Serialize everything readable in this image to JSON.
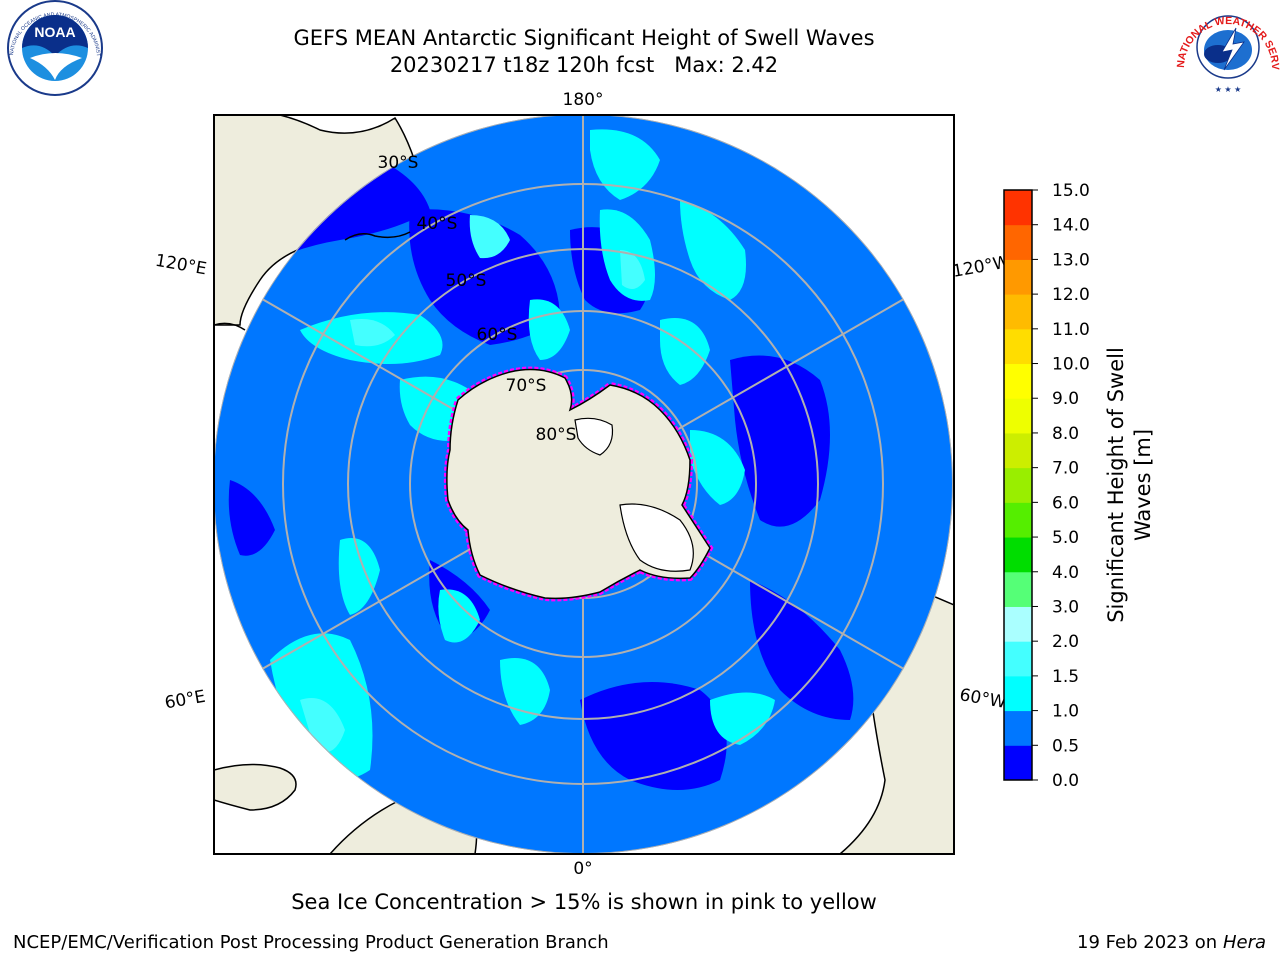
{
  "header": {
    "title_line1": "GEFS MEAN Antarctic Significant Height of Swell Waves",
    "title_line2": "20230217 t18z 120h fcst   Max: 2.42",
    "left_logo_text": "NOAA",
    "left_logo_ring_text": "NATIONAL OCEANIC AND ATMOSPHERIC ADMINISTRATION · U.S. DEPARTMENT OF COMMERCE",
    "right_logo_ring_text": "NATIONAL WEATHER SERVICE"
  },
  "map": {
    "projection": "south-polar-stereographic",
    "longitude_labels": {
      "top": "180°",
      "bottom": "0°",
      "left_upper": "120°E",
      "left_lower": "60°E",
      "right_upper": "120°W",
      "right_lower": "60°W"
    },
    "latitude_labels": [
      "30°S",
      "40°S",
      "50°S",
      "60°S",
      "70°S",
      "80°S"
    ],
    "colors": {
      "land": "#eeeddd",
      "ice_free_white": "#ffffff",
      "sea_ice_edge": "#ff00ff",
      "graticule": "#b0b0b0"
    }
  },
  "colorbar": {
    "label_line1": "Significant Height of Swell",
    "label_line2": "Waves [m]",
    "ticks": [
      "0.0",
      "0.5",
      "1.0",
      "1.5",
      "2.0",
      "3.0",
      "4.0",
      "5.0",
      "6.0",
      "7.0",
      "8.0",
      "9.0",
      "10.0",
      "11.0",
      "12.0",
      "13.0",
      "14.0",
      "15.0"
    ],
    "colors": [
      "#0000ff",
      "#0077ff",
      "#00ffff",
      "#44ffff",
      "#aaffff",
      "#55ff77",
      "#00dd00",
      "#55ee00",
      "#99ee00",
      "#ccee00",
      "#eeff00",
      "#ffff00",
      "#ffdd00",
      "#ffbb00",
      "#ff9900",
      "#ff6600",
      "#ff3300",
      "#ff0000"
    ]
  },
  "footer": {
    "ice_note": "Sea Ice Concentration > 15% is shown in pink to yellow",
    "credit": "NCEP/EMC/Verification Post Processing Product Generation Branch",
    "date": "19 Feb 2023 on",
    "host": "Hera"
  }
}
